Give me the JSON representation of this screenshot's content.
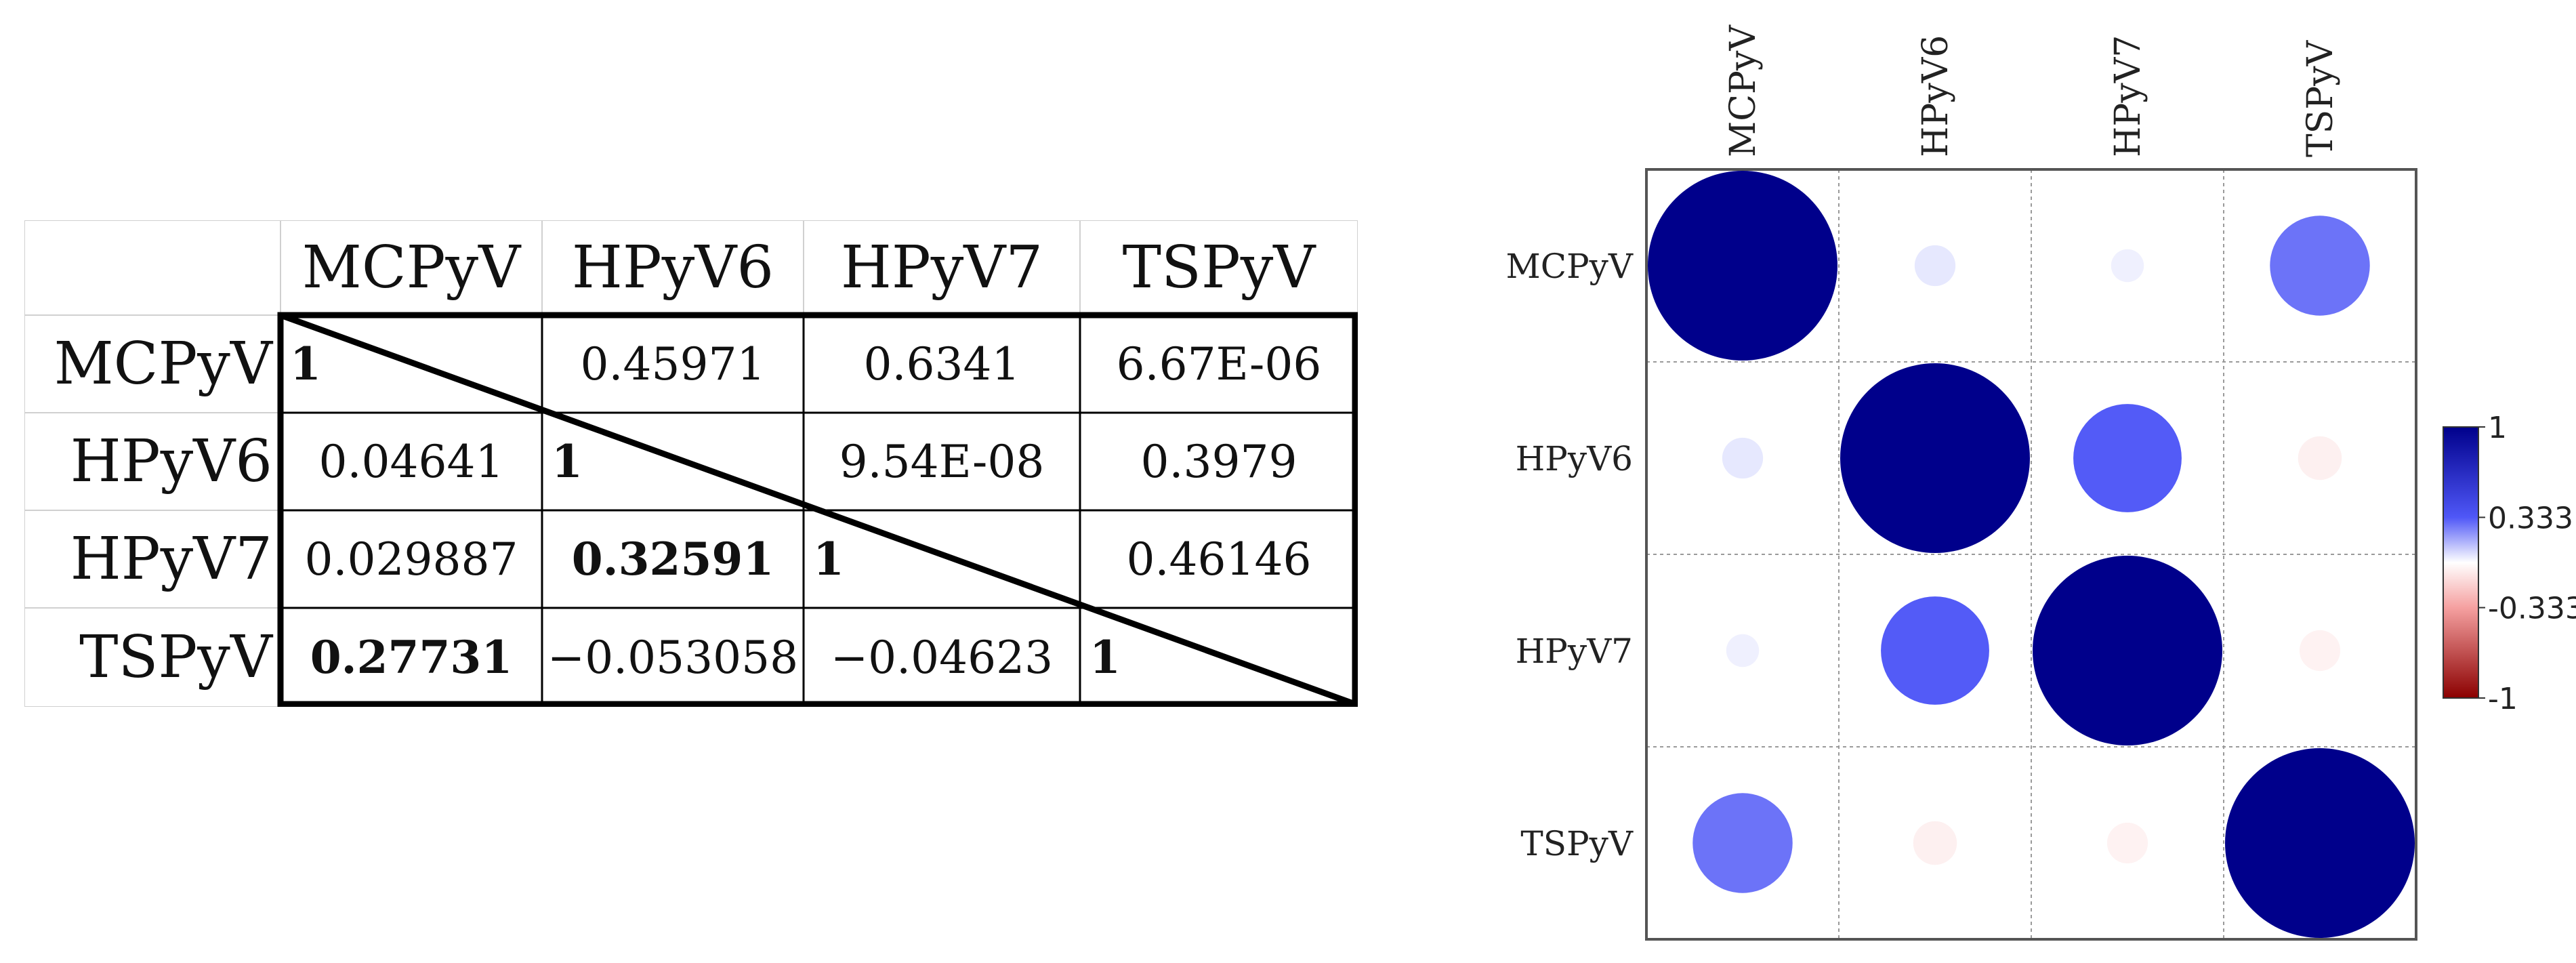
{
  "table": {
    "columns": [
      "MCPyV",
      "HPyV6",
      "HPyV7",
      "TSPyV"
    ],
    "rows": [
      {
        "label": "MCPyV",
        "cells": [
          "1",
          "0.45971",
          "0.6341",
          "6.67E-06"
        ],
        "bold": [
          true,
          false,
          false,
          false
        ]
      },
      {
        "label": "HPyV6",
        "cells": [
          "0.04641",
          "1",
          "9.54E-08",
          "0.3979"
        ],
        "bold": [
          false,
          true,
          false,
          false
        ]
      },
      {
        "label": "HPyV7",
        "cells": [
          "0.029887",
          "0.32591",
          "1",
          "0.46146"
        ],
        "bold": [
          false,
          true,
          true,
          false
        ]
      },
      {
        "label": "TSPyV",
        "cells": [
          "0.27731",
          "−0.053058",
          "−0.04623",
          "1"
        ],
        "bold": [
          true,
          false,
          false,
          true
        ]
      }
    ]
  },
  "chart_data": {
    "type": "heatmap",
    "variables": [
      "MCPyV",
      "HPyV6",
      "HPyV7",
      "TSPyV"
    ],
    "matrix": [
      [
        1,
        0.04641,
        0.029887,
        0.27731
      ],
      [
        0.04641,
        1,
        0.32591,
        -0.053058
      ],
      [
        0.029887,
        0.32591,
        1,
        -0.04623
      ],
      [
        0.27731,
        -0.053058,
        -0.04623,
        1
      ]
    ],
    "legend": {
      "ticks": [
        "1",
        "0.333",
        "-0.333",
        "-1"
      ],
      "range": [
        -1,
        1
      ],
      "placement": "right"
    },
    "colors": {
      "positive": "#00008b",
      "mid": "#ffffff",
      "negative": "#8b0000",
      "pos_light": "#4f57f7",
      "neg_light": "#f5a0a0"
    }
  }
}
